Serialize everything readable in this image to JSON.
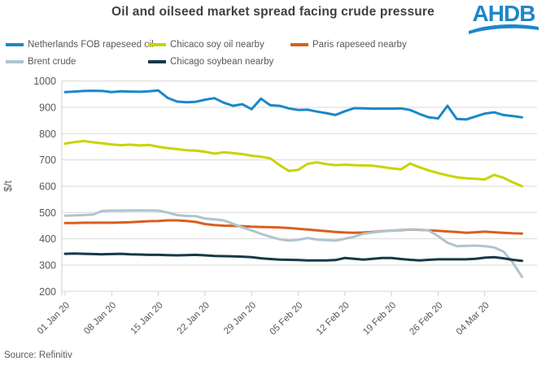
{
  "header": {
    "title": "Oil and oilseed market spread facing crude pressure",
    "logo_text": "AHDB"
  },
  "footer": {
    "source": "Source: Refinitiv"
  },
  "colors": {
    "grid": "#d9d9d9",
    "axis_line": "#d0d0d0",
    "axis_text": "#595959",
    "title_text": "#404040",
    "logo_blue": "#1e87c8",
    "background": "#ffffff"
  },
  "legend": {
    "rows": [
      [
        0,
        1,
        2
      ],
      [
        3,
        4
      ]
    ]
  },
  "chart_data": {
    "type": "line",
    "title": "Oil and oilseed market spread facing crude pressure",
    "ylabel": "$/t",
    "xlabel": "",
    "ylim": [
      200,
      1000
    ],
    "yticks": [
      200,
      300,
      400,
      500,
      600,
      700,
      800,
      900,
      1000
    ],
    "grid": true,
    "legend_position": "top",
    "xticks": [
      "01 Jan 20",
      "08 Jan 20",
      "15 Jan 20",
      "22 Jan 20",
      "29 Jan 20",
      "05 Feb 20",
      "12 Feb 20",
      "19 Feb 20",
      "26 Feb 20",
      "04 Mar 20"
    ],
    "x": [
      "01 Jan 20",
      "02 Jan 20",
      "03 Jan 20",
      "06 Jan 20",
      "07 Jan 20",
      "08 Jan 20",
      "09 Jan 20",
      "10 Jan 20",
      "13 Jan 20",
      "14 Jan 20",
      "15 Jan 20",
      "16 Jan 20",
      "17 Jan 20",
      "20 Jan 20",
      "21 Jan 20",
      "22 Jan 20",
      "23 Jan 20",
      "24 Jan 20",
      "27 Jan 20",
      "28 Jan 20",
      "29 Jan 20",
      "30 Jan 20",
      "31 Jan 20",
      "03 Feb 20",
      "04 Feb 20",
      "05 Feb 20",
      "06 Feb 20",
      "07 Feb 20",
      "10 Feb 20",
      "11 Feb 20",
      "12 Feb 20",
      "13 Feb 20",
      "14 Feb 20",
      "17 Feb 20",
      "18 Feb 20",
      "19 Feb 20",
      "20 Feb 20",
      "21 Feb 20",
      "24 Feb 20",
      "25 Feb 20",
      "26 Feb 20",
      "27 Feb 20",
      "28 Feb 20",
      "02 Mar 20",
      "03 Mar 20",
      "04 Mar 20",
      "05 Mar 20",
      "06 Mar 20",
      "09 Mar 20",
      "10 Mar 20"
    ],
    "series": [
      {
        "name": "Netherlands FOB rapeseed oil",
        "color": "#1b87c9",
        "values": [
          958,
          960,
          962,
          963,
          962,
          958,
          961,
          960,
          959,
          961,
          964,
          936,
          922,
          919,
          921,
          929,
          935,
          918,
          906,
          912,
          893,
          933,
          908,
          906,
          896,
          890,
          891,
          884,
          878,
          871,
          885,
          897,
          896,
          895,
          895,
          895,
          896,
          890,
          875,
          862,
          858,
          906,
          856,
          854,
          865,
          876,
          881,
          871,
          867,
          862
        ]
      },
      {
        "name": "Chicaco soy oil nearby",
        "color": "#c8d400",
        "values": [
          762,
          768,
          772,
          767,
          763,
          759,
          756,
          758,
          755,
          757,
          750,
          745,
          741,
          737,
          735,
          731,
          724,
          729,
          726,
          722,
          716,
          712,
          706,
          680,
          658,
          662,
          685,
          691,
          684,
          680,
          682,
          680,
          679,
          678,
          673,
          668,
          664,
          686,
          672,
          660,
          650,
          641,
          634,
          630,
          628,
          626,
          643,
          632,
          615,
          600
        ]
      },
      {
        "name": "Paris rapeseed nearby",
        "color": "#d95f1e",
        "values": [
          460,
          460,
          461,
          461,
          461,
          461,
          462,
          463,
          465,
          467,
          468,
          470,
          470,
          468,
          464,
          456,
          452,
          450,
          449,
          448,
          446,
          445,
          444,
          443,
          441,
          438,
          435,
          432,
          429,
          426,
          424,
          423,
          424,
          426,
          429,
          431,
          433,
          435,
          434,
          432,
          430,
          428,
          426,
          423,
          425,
          427,
          425,
          423,
          421,
          420
        ]
      },
      {
        "name": "Brent crude",
        "color": "#b0c4ce",
        "values": [
          488,
          489,
          490,
          492,
          506,
          507,
          507,
          508,
          508,
          508,
          507,
          500,
          490,
          487,
          486,
          477,
          474,
          470,
          457,
          443,
          432,
          419,
          408,
          398,
          393,
          396,
          403,
          397,
          395,
          393,
          400,
          408,
          419,
          424,
          428,
          431,
          434,
          436,
          435,
          432,
          410,
          385,
          372,
          373,
          374,
          372,
          367,
          352,
          310,
          255
        ]
      },
      {
        "name": "Chicago soybean nearby",
        "color": "#17394a",
        "values": [
          343,
          344,
          343,
          342,
          341,
          342,
          343,
          341,
          340,
          339,
          339,
          338,
          337,
          338,
          339,
          337,
          335,
          334,
          333,
          332,
          330,
          326,
          323,
          321,
          320,
          319,
          318,
          318,
          318,
          319,
          327,
          324,
          321,
          324,
          327,
          327,
          323,
          320,
          318,
          320,
          322,
          322,
          322,
          322,
          324,
          328,
          330,
          326,
          320,
          316
        ]
      }
    ]
  }
}
